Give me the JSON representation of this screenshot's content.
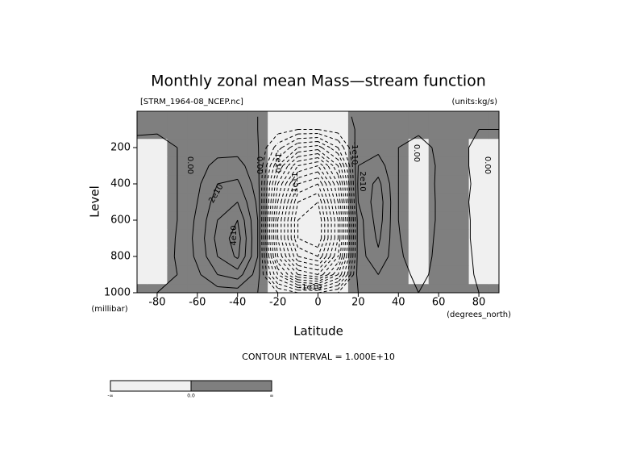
{
  "chart_data": {
    "type": "contour",
    "title": "Monthly zonal mean Mass—stream function",
    "subtitle": "[STRM_1964-08_NCEP.nc]",
    "units": "(units:kg/s)",
    "xlabel": "Latitude",
    "xunits": "(degrees_north)",
    "ylabel": "Level",
    "yunits": "(millibar)",
    "xlim": [
      -90,
      90
    ],
    "ylim": [
      1000,
      0
    ],
    "xticks": [
      -80,
      -60,
      -40,
      -20,
      0,
      20,
      40,
      60,
      80
    ],
    "yticks": [
      200,
      400,
      600,
      800,
      1000
    ],
    "x": [
      -90,
      -80,
      -70,
      -60,
      -50,
      -40,
      -30,
      -20,
      -10,
      0,
      10,
      20,
      30,
      40,
      50,
      60,
      70,
      80,
      90
    ],
    "levels": [
      1000,
      900,
      800,
      700,
      600,
      500,
      400,
      300,
      200,
      100,
      30
    ],
    "z": [
      [
        0,
        0,
        0,
        0,
        5000000000.0,
        5000000000.0,
        0,
        -10000000000.0,
        -20000000000.0,
        -20000000000.0,
        -10000000000.0,
        0,
        3000000000.0,
        2000000000.0,
        0,
        1000000000.0,
        1000000000.0,
        0,
        0
      ],
      [
        -2000000000.0,
        -3000000000.0,
        0,
        8000000000.0,
        20000000000.0,
        25000000000.0,
        5000000000.0,
        -50000000000.0,
        -90000000000.0,
        -100000000000.0,
        -60000000000.0,
        5000000000.0,
        10000000000.0,
        3000000000.0,
        -2000000000.0,
        2000000000.0,
        3000000000.0,
        -1000000000.0,
        -1000000000.0
      ],
      [
        -4000000000.0,
        -6000000000.0,
        1000000000.0,
        12000000000.0,
        30000000000.0,
        42000000000.0,
        10000000000.0,
        -80000000000.0,
        -130000000000.0,
        -140000000000.0,
        -90000000000.0,
        5000000000.0,
        18000000000.0,
        2000000000.0,
        -6000000000.0,
        3000000000.0,
        4000000000.0,
        -2000000000.0,
        -3000000000.0
      ],
      [
        -5000000000.0,
        -9000000000.0,
        1000000000.0,
        13000000000.0,
        33000000000.0,
        45000000000.0,
        10000000000.0,
        -90000000000.0,
        -150000000000.0,
        -160000000000.0,
        -100000000000.0,
        5000000000.0,
        22000000000.0,
        1000000000.0,
        -9000000000.0,
        3000000000.0,
        4000000000.0,
        -3000000000.0,
        -4000000000.0
      ],
      [
        -5000000000.0,
        -10000000000.0,
        0,
        12000000000.0,
        30000000000.0,
        40000000000.0,
        10000000000.0,
        -90000000000.0,
        -150000000000.0,
        -160000000000.0,
        -100000000000.0,
        5000000000.0,
        25000000000.0,
        0,
        -10000000000.0,
        2000000000.0,
        4000000000.0,
        -3000000000.0,
        -4000000000.0
      ],
      [
        -5000000000.0,
        -9000000000.0,
        0,
        10000000000.0,
        25000000000.0,
        30000000000.0,
        8000000000.0,
        -80000000000.0,
        -140000000000.0,
        -150000000000.0,
        -90000000000.0,
        10000000000.0,
        26000000000.0,
        0,
        -10000000000.0,
        2000000000.0,
        3000000000.0,
        -3000000000.0,
        -3000000000.0
      ],
      [
        -4000000000.0,
        -7000000000.0,
        0,
        8000000000.0,
        20000000000.0,
        22000000000.0,
        5000000000.0,
        -70000000000.0,
        -120000000000.0,
        -130000000000.0,
        -80000000000.0,
        12000000000.0,
        23000000000.0,
        0,
        -8000000000.0,
        2000000000.0,
        3000000000.0,
        -2000000000.0,
        -3000000000.0
      ],
      [
        -3000000000.0,
        -5000000000.0,
        0,
        6000000000.0,
        13000000000.0,
        14000000000.0,
        3000000000.0,
        -50000000000.0,
        -90000000000.0,
        -100000000000.0,
        -60000000000.0,
        10000000000.0,
        15000000000.0,
        0,
        -5000000000.0,
        1000000000.0,
        2000000000.0,
        -2000000000.0,
        -2000000000.0
      ],
      [
        -2000000000.0,
        -3000000000.0,
        0,
        3000000000.0,
        6000000000.0,
        6000000000.0,
        1000000000.0,
        -25000000000.0,
        -50000000000.0,
        -55000000000.0,
        -30000000000.0,
        6000000000.0,
        7000000000.0,
        0,
        -2000000000.0,
        1000000000.0,
        1000000000.0,
        -1000000000.0,
        -1000000000.0
      ],
      [
        1000000000.0,
        1000000000.0,
        1000000000.0,
        1000000000.0,
        1000000000.0,
        1000000000.0,
        0,
        -5000000000.0,
        -10000000000.0,
        -10000000000.0,
        -5000000000.0,
        1000000000.0,
        1000000000.0,
        1000000000.0,
        1000000000.0,
        1000000000.0,
        1000000000.0,
        0,
        0
      ],
      [
        1000000000.0,
        1000000000.0,
        1000000000.0,
        1000000000.0,
        1000000000.0,
        1000000000.0,
        0,
        -2000000000.0,
        -3000000000.0,
        -3000000000.0,
        -2000000000.0,
        1000000000.0,
        1000000000.0,
        1000000000.0,
        1000000000.0,
        1000000000.0,
        1000000000.0,
        1000000000.0,
        1000000000.0
      ]
    ],
    "colors": {
      "negative": "#f0f0f0",
      "positive": "#7f7f7f"
    },
    "contour_interval": {
      "value": 10000000000.0,
      "label": "CONTOUR INTERVAL = 1.000E+10"
    },
    "contour_labels": [
      "0.00",
      "0.00",
      "0.00",
      "0.00",
      "2e10",
      "4e10",
      "2e10",
      "-1e11",
      "-1e10",
      "-1e10",
      "-1e10"
    ],
    "colorbar_labels": [
      "-∞",
      "0.0",
      "∞"
    ]
  }
}
